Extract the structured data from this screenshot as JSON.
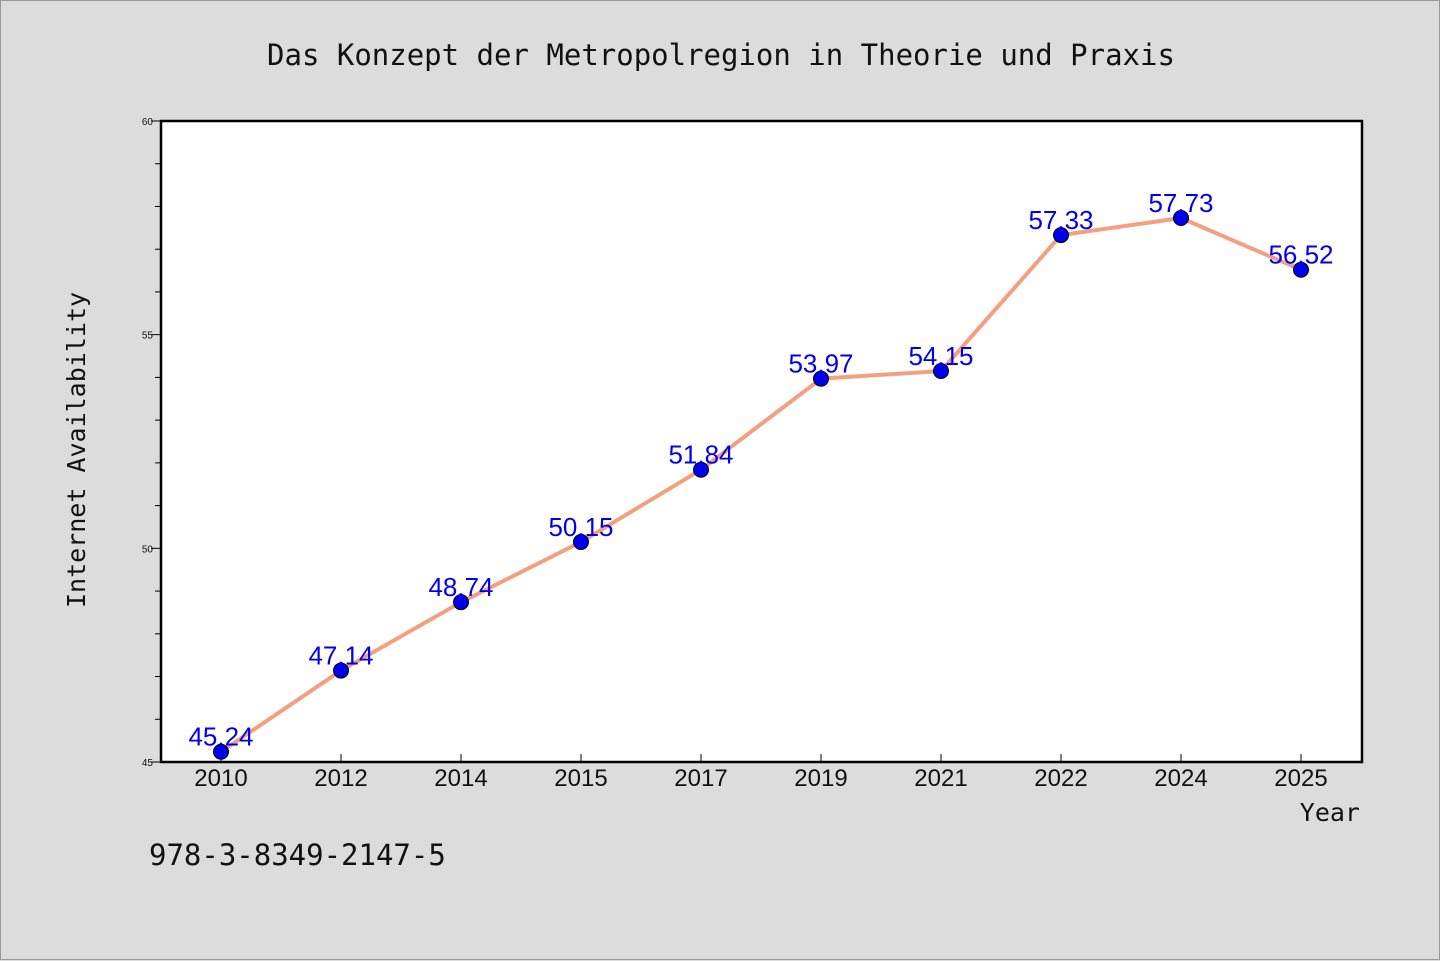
{
  "chart_data": {
    "type": "line",
    "title": "Das Konzept der Metropolregion in Theorie und Praxis",
    "xlabel": "Year",
    "ylabel": "Internet Availability",
    "categories": [
      "2010",
      "2012",
      "2014",
      "2015",
      "2017",
      "2019",
      "2021",
      "2022",
      "2024",
      "2025"
    ],
    "values": [
      45.24,
      47.14,
      48.74,
      50.15,
      51.84,
      53.97,
      54.15,
      57.33,
      57.73,
      56.52
    ],
    "data_labels": [
      "45.24",
      "47.14",
      "48.74",
      "50.15",
      "51.84",
      "53.97",
      "54.15",
      "57.33",
      "57.73",
      "56.52"
    ],
    "ylim": [
      45,
      60
    ],
    "yticks": [
      "45",
      "50",
      "55",
      "60"
    ],
    "grid": false,
    "legend": "none",
    "colors": {
      "line": "#f4a07f",
      "marker": "#0000ee",
      "label": "#0000ee",
      "background": "#dcdcdc",
      "plot_background": "#ffffff"
    }
  },
  "footer": {
    "isbn": "978-3-8349-2147-5"
  }
}
